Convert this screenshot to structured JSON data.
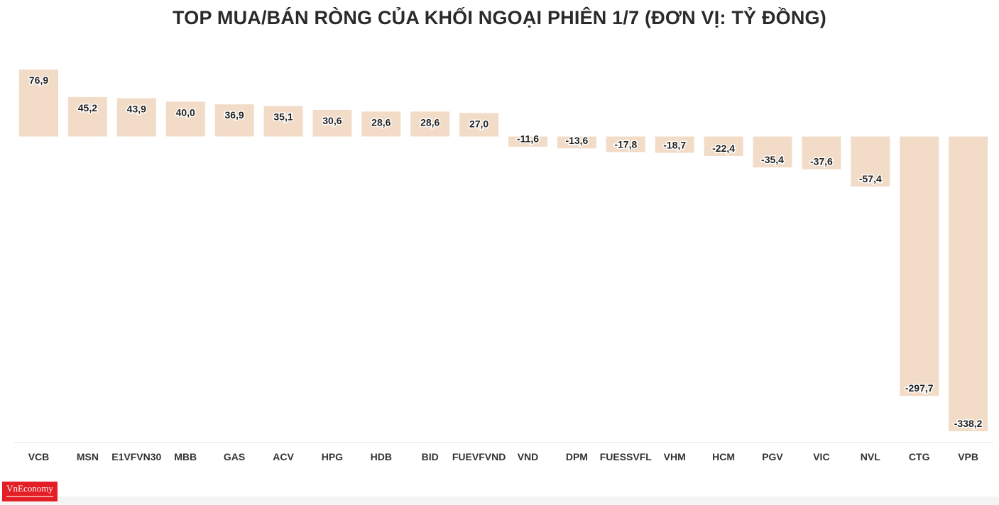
{
  "header": {
    "title": "TOP MUA/BÁN RÒNG CỦA KHỐI NGOẠI PHIÊN 1/7 (ĐƠN VỊ: TỶ ĐỒNG)"
  },
  "logo": {
    "text": "VnEconomy"
  },
  "colors": {
    "bar_fill": "#f2dcc8",
    "label_text": "#222222",
    "axis_line": "#e2e2e2",
    "logo_bg": "#e31e24"
  },
  "chart_data": {
    "type": "bar",
    "title": "TOP MUA/BÁN RÒNG CỦA KHỐI NGOẠI PHIÊN 1/7 (ĐƠN VỊ: TỶ ĐỒNG)",
    "xlabel": "",
    "ylabel": "",
    "categories": [
      "VCB",
      "MSN",
      "E1VFVN30",
      "MBB",
      "GAS",
      "ACV",
      "HPG",
      "HDB",
      "BID",
      "FUEVFVND",
      "VND",
      "DPM",
      "FUESSVFL",
      "VHM",
      "HCM",
      "PGV",
      "VIC",
      "NVL",
      "CTG",
      "VPB"
    ],
    "values": [
      76.9,
      45.2,
      43.9,
      40.0,
      36.9,
      35.1,
      30.6,
      28.6,
      28.6,
      27.0,
      -11.6,
      -13.6,
      -17.8,
      -18.7,
      -22.4,
      -35.4,
      -37.6,
      -57.4,
      -297.7,
      -338.2
    ],
    "value_labels": [
      "76,9",
      "45,2",
      "43,9",
      "40,0",
      "36,9",
      "35,1",
      "30,6",
      "28,6",
      "28,6",
      "27,0",
      "-11,6",
      "-13,6",
      "-17,8",
      "-18,7",
      "-22,4",
      "-35,4",
      "-37,6",
      "-57,4",
      "-297,7",
      "-338,2"
    ],
    "ylim": [
      -338.2,
      76.9
    ],
    "grid": false,
    "legend": "none"
  }
}
